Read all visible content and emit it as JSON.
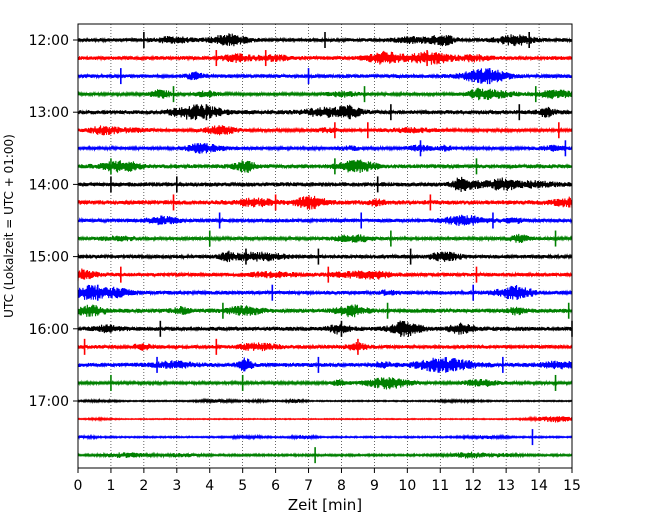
{
  "chart_data": {
    "type": "line",
    "title": "",
    "xlabel": "Zeit  [min]",
    "ylabel": "UTC (Lokalzeit = UTC + 01:00)",
    "xlim": [
      0,
      15
    ],
    "x_ticks": [
      "0",
      "1",
      "2",
      "3",
      "4",
      "5",
      "6",
      "7",
      "8",
      "9",
      "10",
      "11",
      "12",
      "13",
      "14",
      "15"
    ],
    "y_ticks": [
      "12:00",
      "13:00",
      "14:00",
      "15:00",
      "16:00",
      "17:00"
    ],
    "grid": "vertical dotted",
    "legend": "none",
    "trace_interval_min": 15,
    "start_time": "12:00",
    "colors_cycle": [
      "#000000",
      "#ff0000",
      "#0000ff",
      "#008000"
    ],
    "series": [
      {
        "label": "12:00",
        "color": "#000000",
        "amplitude": 0.75,
        "spikes": [
          2.0,
          7.5,
          13.7
        ]
      },
      {
        "label": "12:15",
        "color": "#ff0000",
        "amplitude": 0.8,
        "spikes": [
          4.2,
          5.7,
          10.6
        ]
      },
      {
        "label": "12:30",
        "color": "#0000ff",
        "amplitude": 0.75,
        "spikes": [
          1.3,
          7.0,
          12.5
        ]
      },
      {
        "label": "12:45",
        "color": "#008000",
        "amplitude": 0.6,
        "spikes": [
          2.9,
          8.7,
          13.9
        ]
      },
      {
        "label": "13:00",
        "color": "#000000",
        "amplitude": 0.85,
        "spikes": [
          3.9,
          9.5,
          13.4
        ]
      },
      {
        "label": "13:15",
        "color": "#ff0000",
        "amplitude": 0.6,
        "spikes": [
          7.8,
          8.8,
          14.6
        ]
      },
      {
        "label": "13:30",
        "color": "#0000ff",
        "amplitude": 0.6,
        "spikes": [
          10.4,
          14.8
        ]
      },
      {
        "label": "13:45",
        "color": "#008000",
        "amplitude": 0.85,
        "spikes": [
          1.0,
          7.8,
          12.1
        ]
      },
      {
        "label": "14:00",
        "color": "#000000",
        "amplitude": 0.85,
        "spikes": [
          1.0,
          3.0,
          9.1
        ]
      },
      {
        "label": "14:15",
        "color": "#ff0000",
        "amplitude": 0.9,
        "spikes": [
          2.9,
          6.0,
          10.7
        ]
      },
      {
        "label": "14:30",
        "color": "#0000ff",
        "amplitude": 0.75,
        "spikes": [
          4.3,
          8.6,
          12.6
        ]
      },
      {
        "label": "14:45",
        "color": "#008000",
        "amplitude": 0.6,
        "spikes": [
          4.0,
          9.5,
          14.5
        ]
      },
      {
        "label": "15:00",
        "color": "#000000",
        "amplitude": 0.75,
        "spikes": [
          5.1,
          7.3,
          10.1
        ]
      },
      {
        "label": "15:15",
        "color": "#ff0000",
        "amplitude": 0.75,
        "spikes": [
          1.3,
          7.6,
          12.1
        ]
      },
      {
        "label": "15:30",
        "color": "#0000ff",
        "amplitude": 0.75,
        "spikes": [
          0.6,
          5.9,
          12.0
        ]
      },
      {
        "label": "15:45",
        "color": "#008000",
        "amplitude": 0.85,
        "spikes": [
          4.4,
          9.4,
          14.9
        ]
      },
      {
        "label": "16:00",
        "color": "#000000",
        "amplitude": 0.85,
        "spikes": [
          2.5,
          8.0,
          15.0
        ]
      },
      {
        "label": "16:15",
        "color": "#ff0000",
        "amplitude": 0.75,
        "spikes": [
          0.2,
          4.2,
          8.5
        ]
      },
      {
        "label": "16:30",
        "color": "#0000ff",
        "amplitude": 0.85,
        "spikes": [
          2.4,
          7.3,
          12.9
        ]
      },
      {
        "label": "16:45",
        "color": "#008000",
        "amplitude": 0.55,
        "spikes": [
          1.0,
          5.0,
          14.5
        ]
      },
      {
        "label": "17:00",
        "color": "#000000",
        "amplitude": 0.25,
        "spikes": []
      },
      {
        "label": "17:15",
        "color": "#ff0000",
        "amplitude": 0.2,
        "spikes": []
      },
      {
        "label": "17:30",
        "color": "#0000ff",
        "amplitude": 0.3,
        "spikes": [
          13.8
        ]
      },
      {
        "label": "17:45",
        "color": "#008000",
        "amplitude": 0.4,
        "spikes": [
          7.2
        ]
      }
    ]
  }
}
